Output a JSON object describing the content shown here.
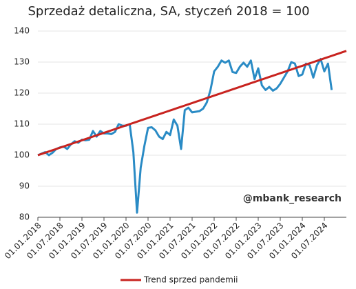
{
  "chart_data": {
    "type": "line",
    "title": "Sprzedaż detaliczna, SA, styczeń 2018 = 100",
    "annotation": "@mbank_research",
    "categories": [
      "01.01.2018",
      null,
      null,
      null,
      null,
      null,
      "01.07.2018",
      null,
      null,
      null,
      null,
      null,
      "01.01.2019",
      null,
      null,
      null,
      null,
      null,
      "01.07.2019",
      null,
      null,
      null,
      null,
      null,
      "01.01.2020",
      null,
      null,
      null,
      null,
      null,
      "01.07.2020",
      null,
      null,
      null,
      null,
      null,
      "01.01.2021",
      null,
      null,
      null,
      null,
      null,
      "01.07.2021",
      null,
      null,
      null,
      null,
      null,
      "01.01.2022",
      null,
      null,
      null,
      null,
      null,
      "01.07.2022",
      null,
      null,
      null,
      null,
      null,
      "01.01.2023",
      null,
      null,
      null,
      null,
      null,
      "01.07.2023",
      null,
      null,
      null,
      null,
      null,
      "01.01.2024",
      null,
      null,
      null,
      null,
      null,
      "01.07.2024",
      null,
      null,
      null,
      null,
      null,
      null
    ],
    "series": [
      {
        "color": "#2a8bc5",
        "values": [
          100,
          100.5,
          101,
          100,
          100.8,
          102,
          102.5,
          102.8,
          102,
          103.5,
          104.5,
          104,
          105,
          104.8,
          105,
          107.8,
          106,
          107.8,
          107,
          107,
          106.8,
          107.5,
          110,
          109.5,
          109.5,
          110,
          101,
          81.5,
          96,
          103,
          108.8,
          109,
          108,
          106,
          105.2,
          107.5,
          106.5,
          111.5,
          109.5,
          102,
          114.5,
          115.3,
          113.8,
          114,
          114.2,
          115,
          117,
          121,
          127,
          128.5,
          130.5,
          129.8,
          130.5,
          126.8,
          126.5,
          128.5,
          129.8,
          128.5,
          130.5,
          124.5,
          128,
          122.5,
          121,
          122,
          120.8,
          121.5,
          123,
          125,
          127,
          130,
          129.5,
          125.5,
          126,
          129.5,
          129,
          125,
          129,
          131,
          127,
          129.5,
          121,
          null,
          null,
          null,
          null
        ]
      },
      {
        "name": "Trend sprzed pandemii",
        "color": "#c8231f",
        "values": [
          100,
          100.4,
          100.8,
          101.2,
          101.6,
          102,
          102.4,
          102.8,
          103.2,
          103.6,
          104,
          104.4,
          104.8,
          105.2,
          105.6,
          106,
          106.4,
          106.8,
          107.2,
          107.6,
          108,
          108.4,
          108.8,
          109.2,
          109.6,
          110,
          110.4,
          110.8,
          111.2,
          111.6,
          112,
          112.4,
          112.8,
          113.2,
          113.6,
          114,
          114.4,
          114.8,
          115.2,
          115.6,
          116,
          116.4,
          116.8,
          117.2,
          117.6,
          118,
          118.4,
          118.8,
          119.2,
          119.6,
          120,
          120.4,
          120.8,
          121.2,
          121.6,
          122,
          122.4,
          122.8,
          123.2,
          123.6,
          124,
          124.4,
          124.8,
          125.2,
          125.6,
          126,
          126.4,
          126.8,
          127.2,
          127.6,
          128,
          128.4,
          128.8,
          129.2,
          129.6,
          130,
          130.4,
          130.8,
          131.2,
          131.6,
          132,
          132.4,
          132.8,
          133.2,
          133.6
        ]
      }
    ],
    "ylim": [
      80,
      140
    ],
    "yticks": [
      80,
      90,
      100,
      110,
      120,
      130,
      140
    ],
    "grid": true
  }
}
